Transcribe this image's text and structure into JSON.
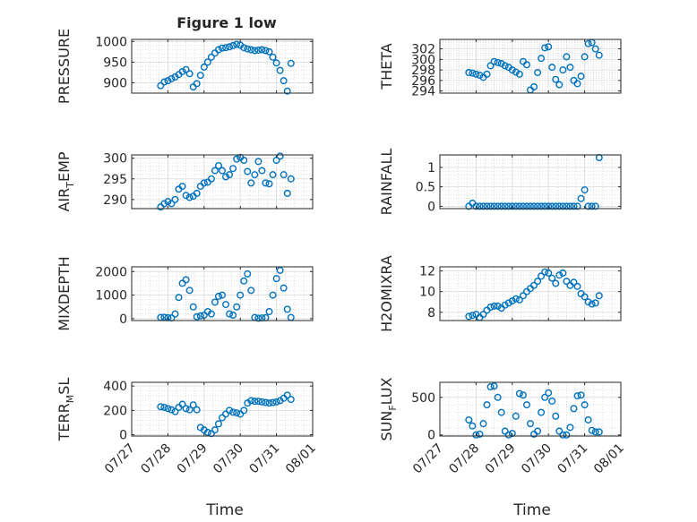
{
  "figure": {
    "title": "Figure 1 low",
    "xlabel": "Time",
    "xticks": [
      "07/27",
      "07/28",
      "07/29",
      "07/30",
      "07/31",
      "08/01"
    ],
    "marker_color": "#0072BD"
  },
  "chart_data": [
    {
      "type": "scatter",
      "ylabel": "PRESSURE",
      "yticks": [
        900,
        950,
        1000
      ],
      "ylim": [
        875,
        1005
      ],
      "x": [
        0.8,
        0.9,
        1.0,
        1.1,
        1.2,
        1.3,
        1.4,
        1.5,
        1.6,
        1.7,
        1.8,
        1.9,
        2.0,
        2.1,
        2.2,
        2.3,
        2.4,
        2.5,
        2.6,
        2.7,
        2.8,
        2.9,
        3.0,
        3.1,
        3.2,
        3.3,
        3.4,
        3.5,
        3.6,
        3.7,
        3.8,
        3.9,
        4.0,
        4.1,
        4.2,
        4.3,
        4.4
      ],
      "y": [
        893,
        902,
        905,
        910,
        914,
        920,
        927,
        932,
        922,
        890,
        898,
        918,
        938,
        950,
        962,
        972,
        980,
        984,
        985,
        987,
        990,
        993,
        991,
        985,
        982,
        980,
        978,
        979,
        980,
        978,
        975,
        962,
        948,
        930,
        905,
        880,
        947
      ]
    },
    {
      "type": "scatter",
      "ylabel": "THETA",
      "yticks": [
        294,
        296,
        298,
        300,
        302
      ],
      "ylim": [
        293.6,
        303.8
      ],
      "x": [
        0.8,
        0.9,
        1.0,
        1.1,
        1.2,
        1.3,
        1.4,
        1.5,
        1.6,
        1.7,
        1.8,
        1.9,
        2.0,
        2.1,
        2.2,
        2.3,
        2.4,
        2.5,
        2.6,
        2.7,
        2.8,
        2.9,
        3.0,
        3.1,
        3.2,
        3.3,
        3.4,
        3.5,
        3.6,
        3.7,
        3.8,
        3.9,
        4.0,
        4.1,
        4.2,
        4.3,
        4.4
      ],
      "y": [
        297.5,
        297.4,
        297.2,
        297.0,
        296.6,
        297.2,
        298.8,
        299.6,
        299.4,
        299.2,
        298.8,
        298.5,
        298.0,
        297.6,
        297.2,
        299.6,
        299.0,
        294.2,
        294.8,
        297.5,
        300.2,
        302.2,
        302.4,
        298.5,
        296.2,
        295.2,
        298.0,
        300.5,
        298.5,
        296.0,
        295.4,
        296.8,
        300.5,
        303.0,
        303.2,
        302.0,
        300.8
      ]
    },
    {
      "type": "scatter",
      "ylabel": "AIR_TEMP",
      "yticks": [
        290,
        295,
        300
      ],
      "ylim": [
        287.8,
        300.8
      ],
      "x": [
        0.8,
        0.9,
        1.0,
        1.1,
        1.2,
        1.3,
        1.4,
        1.5,
        1.6,
        1.7,
        1.8,
        1.9,
        2.0,
        2.1,
        2.2,
        2.3,
        2.4,
        2.5,
        2.6,
        2.7,
        2.8,
        2.9,
        3.0,
        3.1,
        3.2,
        3.3,
        3.4,
        3.5,
        3.6,
        3.7,
        3.8,
        3.9,
        4.0,
        4.1,
        4.2,
        4.3,
        4.4
      ],
      "y": [
        288.2,
        289.0,
        289.5,
        289.0,
        290.0,
        292.5,
        293.2,
        291.0,
        290.5,
        290.8,
        291.5,
        293.2,
        294.0,
        294.2,
        295.0,
        297.0,
        298.2,
        297.0,
        295.5,
        296.0,
        297.5,
        299.8,
        300.2,
        299.5,
        296.8,
        294.0,
        296.0,
        299.2,
        297.0,
        294.0,
        293.8,
        296.0,
        299.5,
        300.5,
        296.0,
        291.5,
        295.0
      ]
    },
    {
      "type": "scatter",
      "ylabel": "RAINFALL",
      "yticks": [
        0,
        0.5,
        1
      ],
      "ylim": [
        -0.06,
        1.32
      ],
      "x": [
        0.8,
        0.9,
        1.0,
        1.1,
        1.2,
        1.3,
        1.4,
        1.5,
        1.6,
        1.7,
        1.8,
        1.9,
        2.0,
        2.1,
        2.2,
        2.3,
        2.4,
        2.5,
        2.6,
        2.7,
        2.8,
        2.9,
        3.0,
        3.1,
        3.2,
        3.3,
        3.4,
        3.5,
        3.6,
        3.7,
        3.8,
        3.9,
        4.0,
        4.1,
        4.2,
        4.3,
        4.4
      ],
      "y": [
        0,
        0.08,
        0,
        0,
        0,
        0,
        0,
        0,
        0,
        0,
        0,
        0,
        0,
        0,
        0,
        0,
        0,
        0,
        0,
        0,
        0,
        0,
        0,
        0,
        0,
        0,
        0,
        0,
        0,
        0,
        0,
        0.2,
        0.42,
        0,
        0,
        0,
        1.25
      ]
    },
    {
      "type": "scatter",
      "ylabel": "MIXDEPTH",
      "yticks": [
        0,
        1000,
        2000
      ],
      "ylim": [
        -80,
        2200
      ],
      "x": [
        0.8,
        0.9,
        1.0,
        1.1,
        1.2,
        1.3,
        1.4,
        1.5,
        1.6,
        1.7,
        1.8,
        1.9,
        2.0,
        2.1,
        2.2,
        2.3,
        2.4,
        2.5,
        2.6,
        2.7,
        2.8,
        2.9,
        3.0,
        3.1,
        3.2,
        3.3,
        3.4,
        3.5,
        3.6,
        3.7,
        3.8,
        3.9,
        4.0,
        4.1,
        4.2,
        4.3,
        4.4
      ],
      "y": [
        50,
        60,
        40,
        30,
        200,
        900,
        1500,
        1650,
        1200,
        500,
        80,
        120,
        150,
        300,
        200,
        700,
        950,
        1000,
        600,
        200,
        150,
        500,
        1000,
        1600,
        1900,
        1200,
        50,
        20,
        30,
        40,
        300,
        1000,
        1700,
        2050,
        1300,
        400,
        50
      ]
    },
    {
      "type": "scatter",
      "ylabel": "H2OMIXRA",
      "yticks": [
        8,
        10,
        12
      ],
      "ylim": [
        7.2,
        12.4
      ],
      "x": [
        0.8,
        0.9,
        1.0,
        1.1,
        1.2,
        1.3,
        1.4,
        1.5,
        1.6,
        1.7,
        1.8,
        1.9,
        2.0,
        2.1,
        2.2,
        2.3,
        2.4,
        2.5,
        2.6,
        2.7,
        2.8,
        2.9,
        3.0,
        3.1,
        3.2,
        3.3,
        3.4,
        3.5,
        3.6,
        3.7,
        3.8,
        3.9,
        4.0,
        4.1,
        4.2,
        4.3,
        4.4
      ],
      "y": [
        7.6,
        7.7,
        7.8,
        7.5,
        7.8,
        8.2,
        8.5,
        8.6,
        8.6,
        8.4,
        8.7,
        8.9,
        9.1,
        9.3,
        9.2,
        9.6,
        10.0,
        10.3,
        10.6,
        11.0,
        11.5,
        11.9,
        11.8,
        11.3,
        10.8,
        11.6,
        11.8,
        11.0,
        10.6,
        10.9,
        10.5,
        9.8,
        9.5,
        9.0,
        8.8,
        8.9,
        9.6
      ]
    },
    {
      "type": "scatter",
      "ylabel": "TERR_MSL",
      "yticks": [
        0,
        200,
        400
      ],
      "ylim": [
        -10,
        430
      ],
      "x": [
        0.8,
        0.9,
        1.0,
        1.1,
        1.2,
        1.3,
        1.4,
        1.5,
        1.6,
        1.7,
        1.8,
        1.9,
        2.0,
        2.1,
        2.2,
        2.3,
        2.4,
        2.5,
        2.6,
        2.7,
        2.8,
        2.9,
        3.0,
        3.1,
        3.2,
        3.3,
        3.4,
        3.5,
        3.6,
        3.7,
        3.8,
        3.9,
        4.0,
        4.1,
        4.2,
        4.3,
        4.4
      ],
      "y": [
        230,
        225,
        215,
        205,
        190,
        225,
        250,
        215,
        205,
        245,
        205,
        60,
        40,
        20,
        10,
        40,
        90,
        140,
        170,
        200,
        185,
        180,
        170,
        200,
        260,
        280,
        275,
        275,
        270,
        265,
        260,
        265,
        270,
        280,
        300,
        325,
        290
      ]
    },
    {
      "type": "scatter",
      "ylabel": "SUN_FLUX",
      "yticks": [
        0,
        500
      ],
      "ylim": [
        -15,
        700
      ],
      "x": [
        0.8,
        0.9,
        1.0,
        1.1,
        1.2,
        1.3,
        1.4,
        1.5,
        1.6,
        1.7,
        1.8,
        1.9,
        2.0,
        2.1,
        2.2,
        2.3,
        2.4,
        2.5,
        2.6,
        2.7,
        2.8,
        2.9,
        3.0,
        3.1,
        3.2,
        3.3,
        3.4,
        3.5,
        3.6,
        3.7,
        3.8,
        3.9,
        4.0,
        4.1,
        4.2,
        4.3,
        4.4
      ],
      "y": [
        200,
        120,
        0,
        10,
        150,
        400,
        640,
        650,
        500,
        300,
        50,
        0,
        20,
        250,
        550,
        530,
        400,
        150,
        10,
        50,
        300,
        500,
        560,
        450,
        250,
        50,
        0,
        0,
        100,
        350,
        520,
        530,
        400,
        200,
        60,
        40,
        40
      ]
    }
  ]
}
